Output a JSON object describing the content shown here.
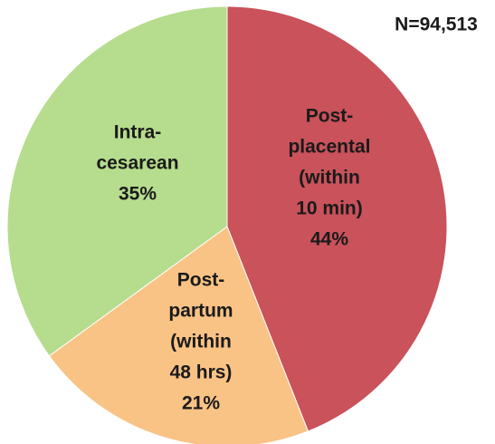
{
  "chart_data": {
    "type": "pie",
    "annotation": "N=94,513",
    "categories": [
      [
        "Post-",
        "placental",
        "(within",
        "10 min)"
      ],
      [
        "Post-",
        "partum",
        "(within",
        "48 hrs)"
      ],
      [
        "Intra-",
        "cesarean"
      ]
    ],
    "values": [
      44,
      21,
      35
    ],
    "value_labels": [
      "44%",
      "21%",
      "35%"
    ],
    "colors": [
      "#c9525b",
      "#f9c385",
      "#b6dc8d"
    ]
  }
}
